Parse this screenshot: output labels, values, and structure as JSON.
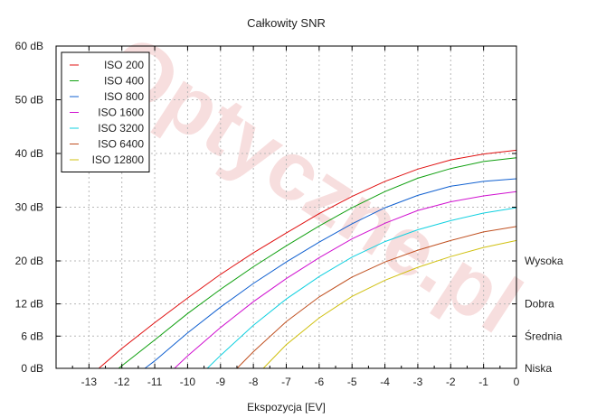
{
  "chart_data": {
    "type": "line",
    "title": "Całkowity SNR",
    "xlabel": "Ekspozycja [EV]",
    "ylabel": "",
    "xlim": [
      -14,
      0
    ],
    "ylim": [
      0,
      60
    ],
    "x_ticks": [
      -13,
      -12,
      -11,
      -10,
      -9,
      -8,
      -7,
      -6,
      -5,
      -4,
      -3,
      -2,
      -1,
      0
    ],
    "x_tick_labels": [
      "-13",
      "-12",
      "-11",
      "-10",
      "-9",
      "-8",
      "-7",
      "-6",
      "-5",
      "-4",
      "-3",
      "-2",
      "-1",
      "0"
    ],
    "y_ticks": [
      0,
      6,
      12,
      20,
      30,
      40,
      50,
      60
    ],
    "y_tick_labels": [
      "0 dB",
      "6 dB",
      "12 dB",
      "20 dB",
      "30 dB",
      "40 dB",
      "50 dB",
      "60 dB"
    ],
    "right_labels": [
      {
        "y": 20,
        "text": "Wysoka"
      },
      {
        "y": 12,
        "text": "Dobra"
      },
      {
        "y": 6,
        "text": "Średnia"
      },
      {
        "y": 0,
        "text": "Niska"
      }
    ],
    "grid": true,
    "legend_position": "top-left",
    "watermark": "Optyczne.pl",
    "series": [
      {
        "name": "ISO 200",
        "color": "#e01010",
        "x": [
          -12.7,
          -12,
          -11,
          -10,
          -9,
          -8,
          -7,
          -6,
          -5,
          -4,
          -3,
          -2,
          -1,
          0
        ],
        "y": [
          0,
          3.7,
          8.5,
          13.1,
          17.5,
          21.5,
          25.2,
          28.8,
          32.0,
          34.8,
          37.1,
          38.8,
          39.9,
          40.6
        ]
      },
      {
        "name": "ISO 400",
        "color": "#10a010",
        "x": [
          -12.1,
          -11,
          -10,
          -9,
          -8,
          -7,
          -6,
          -5,
          -4,
          -3,
          -2,
          -1,
          0
        ],
        "y": [
          0,
          5.3,
          10.2,
          14.7,
          18.9,
          22.8,
          26.5,
          29.9,
          32.9,
          35.4,
          37.2,
          38.5,
          39.2
        ]
      },
      {
        "name": "ISO 800",
        "color": "#1060d0",
        "x": [
          -11.3,
          -11,
          -10,
          -9,
          -8,
          -7,
          -6,
          -5,
          -4,
          -3,
          -2,
          -1,
          0
        ],
        "y": [
          0,
          1.4,
          6.6,
          11.4,
          15.8,
          19.8,
          23.5,
          26.9,
          29.9,
          32.2,
          33.9,
          34.8,
          35.3
        ]
      },
      {
        "name": "ISO 1600",
        "color": "#d010d0",
        "x": [
          -10.4,
          -10,
          -9,
          -8,
          -7,
          -6,
          -5,
          -4,
          -3,
          -2,
          -1,
          0
        ],
        "y": [
          0,
          2.3,
          7.6,
          12.4,
          16.7,
          20.6,
          24.1,
          27.0,
          29.4,
          31.0,
          32.1,
          32.9
        ]
      },
      {
        "name": "ISO 3200",
        "color": "#10d0e0",
        "x": [
          -9.4,
          -9,
          -8,
          -7,
          -6,
          -5,
          -4,
          -3,
          -2,
          -1,
          0
        ],
        "y": [
          0,
          2.4,
          8.0,
          12.9,
          17.1,
          20.7,
          23.6,
          25.8,
          27.5,
          28.9,
          29.9
        ]
      },
      {
        "name": "ISO 6400",
        "color": "#c05020",
        "x": [
          -8.5,
          -8,
          -7,
          -6,
          -5,
          -4,
          -3,
          -2,
          -1,
          0
        ],
        "y": [
          0,
          3.1,
          8.7,
          13.3,
          17.0,
          19.8,
          22.0,
          23.8,
          25.4,
          26.4
        ]
      },
      {
        "name": "ISO 12800",
        "color": "#d0c010",
        "x": [
          -7.7,
          -7,
          -6,
          -5,
          -4,
          -3,
          -2,
          -1,
          0
        ],
        "y": [
          0,
          4.4,
          9.4,
          13.4,
          16.4,
          18.8,
          20.8,
          22.5,
          23.8
        ]
      }
    ]
  }
}
